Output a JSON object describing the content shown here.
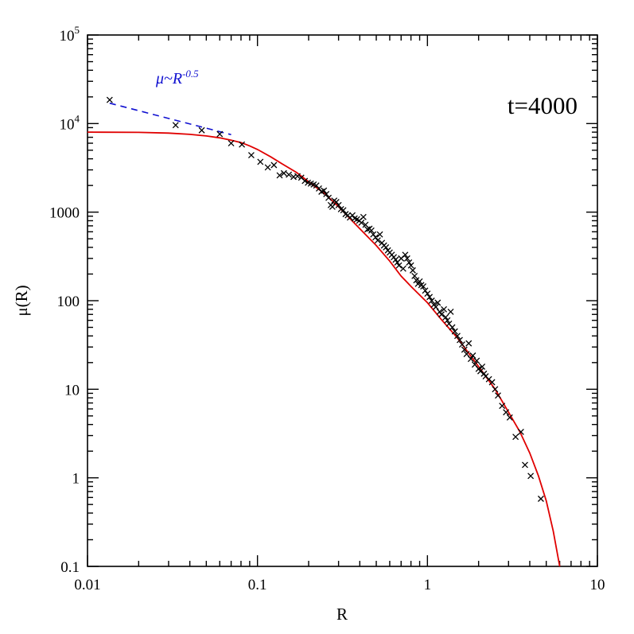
{
  "chart_data": {
    "type": "scatter",
    "xlabel": "R",
    "ylabel": "μ(R)",
    "xscale": "log",
    "yscale": "log",
    "xlim": [
      0.01,
      10
    ],
    "ylim": [
      0.1,
      100000
    ],
    "grid": false,
    "x_tick_labels": [
      "0.01",
      "0.1",
      "1",
      "10"
    ],
    "y_tick_labels": [
      {
        "mantissa": "0.1",
        "exp": ""
      },
      {
        "mantissa": "1",
        "exp": ""
      },
      {
        "mantissa": "10",
        "exp": ""
      },
      {
        "mantissa": "100",
        "exp": ""
      },
      {
        "mantissa": "1000",
        "exp": ""
      },
      {
        "mantissa": "10",
        "exp": "4"
      },
      {
        "mantissa": "10",
        "exp": "5"
      }
    ],
    "annotations": {
      "time": "t=4000",
      "slope_prefix": "μ~R",
      "slope_exponent": "-0.5"
    },
    "colors": {
      "points": "#000000",
      "fit": "#e00000",
      "slope": "#1010d0"
    },
    "points": [
      [
        0.0135,
        18500
      ],
      [
        0.033,
        9600
      ],
      [
        0.047,
        8400
      ],
      [
        0.06,
        7600
      ],
      [
        0.07,
        6000
      ],
      [
        0.081,
        5800
      ],
      [
        0.092,
        4400
      ],
      [
        0.104,
        3700
      ],
      [
        0.115,
        3200
      ],
      [
        0.125,
        3400
      ],
      [
        0.135,
        2600
      ],
      [
        0.143,
        2750
      ],
      [
        0.153,
        2650
      ],
      [
        0.163,
        2500
      ],
      [
        0.172,
        2550
      ],
      [
        0.181,
        2450
      ],
      [
        0.19,
        2250
      ],
      [
        0.198,
        2150
      ],
      [
        0.206,
        2100
      ],
      [
        0.214,
        2050
      ],
      [
        0.222,
        2000
      ],
      [
        0.23,
        1850
      ],
      [
        0.238,
        1700
      ],
      [
        0.246,
        1750
      ],
      [
        0.254,
        1600
      ],
      [
        0.262,
        1450
      ],
      [
        0.27,
        1200
      ],
      [
        0.276,
        1150
      ],
      [
        0.283,
        1350
      ],
      [
        0.291,
        1300
      ],
      [
        0.3,
        1200
      ],
      [
        0.31,
        1080
      ],
      [
        0.32,
        1050
      ],
      [
        0.33,
        950
      ],
      [
        0.34,
        920
      ],
      [
        0.35,
        870
      ],
      [
        0.362,
        920
      ],
      [
        0.373,
        850
      ],
      [
        0.385,
        830
      ],
      [
        0.397,
        800
      ],
      [
        0.409,
        760
      ],
      [
        0.42,
        880
      ],
      [
        0.432,
        720
      ],
      [
        0.444,
        640
      ],
      [
        0.456,
        650
      ],
      [
        0.468,
        620
      ],
      [
        0.48,
        560
      ],
      [
        0.495,
        520
      ],
      [
        0.51,
        480
      ],
      [
        0.525,
        560
      ],
      [
        0.54,
        450
      ],
      [
        0.555,
        420
      ],
      [
        0.57,
        400
      ],
      [
        0.585,
        370
      ],
      [
        0.6,
        350
      ],
      [
        0.617,
        330
      ],
      [
        0.634,
        310
      ],
      [
        0.65,
        290
      ],
      [
        0.665,
        270
      ],
      [
        0.68,
        250
      ],
      [
        0.7,
        300
      ],
      [
        0.72,
        230
      ],
      [
        0.74,
        330
      ],
      [
        0.76,
        300
      ],
      [
        0.78,
        270
      ],
      [
        0.8,
        250
      ],
      [
        0.82,
        220
      ],
      [
        0.84,
        190
      ],
      [
        0.86,
        170
      ],
      [
        0.88,
        155
      ],
      [
        0.9,
        165
      ],
      [
        0.92,
        150
      ],
      [
        0.945,
        145
      ],
      [
        0.97,
        130
      ],
      [
        1.0,
        120
      ],
      [
        1.03,
        110
      ],
      [
        1.06,
        100
      ],
      [
        1.09,
        90
      ],
      [
        1.12,
        85
      ],
      [
        1.15,
        95
      ],
      [
        1.18,
        75
      ],
      [
        1.21,
        70
      ],
      [
        1.25,
        80
      ],
      [
        1.28,
        65
      ],
      [
        1.31,
        60
      ],
      [
        1.34,
        55
      ],
      [
        1.37,
        75
      ],
      [
        1.4,
        50
      ],
      [
        1.45,
        45
      ],
      [
        1.5,
        40
      ],
      [
        1.55,
        36
      ],
      [
        1.6,
        32
      ],
      [
        1.65,
        28
      ],
      [
        1.7,
        25
      ],
      [
        1.75,
        33
      ],
      [
        1.8,
        22
      ],
      [
        1.85,
        24
      ],
      [
        1.9,
        19
      ],
      [
        1.95,
        21
      ],
      [
        2.0,
        17
      ],
      [
        2.05,
        16
      ],
      [
        2.1,
        18
      ],
      [
        2.15,
        15
      ],
      [
        2.2,
        14
      ],
      [
        2.3,
        13
      ],
      [
        2.4,
        12
      ],
      [
        2.5,
        10
      ],
      [
        2.6,
        8.5
      ],
      [
        2.75,
        6.5
      ],
      [
        2.9,
        5.5
      ],
      [
        3.05,
        4.8
      ],
      [
        3.3,
        2.9
      ],
      [
        3.55,
        3.3
      ],
      [
        3.75,
        1.4
      ],
      [
        4.05,
        1.05
      ],
      [
        4.65,
        0.58
      ]
    ],
    "fit_curve": [
      [
        0.01,
        8000
      ],
      [
        0.02,
        7950
      ],
      [
        0.03,
        7800
      ],
      [
        0.04,
        7550
      ],
      [
        0.05,
        7250
      ],
      [
        0.06,
        6900
      ],
      [
        0.07,
        6500
      ],
      [
        0.08,
        6100
      ],
      [
        0.09,
        5600
      ],
      [
        0.1,
        5100
      ],
      [
        0.12,
        4200
      ],
      [
        0.14,
        3500
      ],
      [
        0.17,
        2800
      ],
      [
        0.2,
        2200
      ],
      [
        0.25,
        1600
      ],
      [
        0.3,
        1150
      ],
      [
        0.4,
        650
      ],
      [
        0.5,
        420
      ],
      [
        0.6,
        280
      ],
      [
        0.7,
        190
      ],
      [
        0.8,
        145
      ],
      [
        1.0,
        95
      ],
      [
        1.2,
        62
      ],
      [
        1.5,
        38
      ],
      [
        2.0,
        18
      ],
      [
        2.5,
        10
      ],
      [
        3.0,
        5.5
      ],
      [
        3.5,
        3.3
      ],
      [
        4.0,
        1.9
      ],
      [
        4.5,
        1.05
      ],
      [
        5.0,
        0.55
      ],
      [
        5.5,
        0.25
      ],
      [
        6.0,
        0.1
      ]
    ],
    "slope_line": [
      [
        0.0135,
        17000
      ],
      [
        0.07,
        7500
      ]
    ]
  }
}
